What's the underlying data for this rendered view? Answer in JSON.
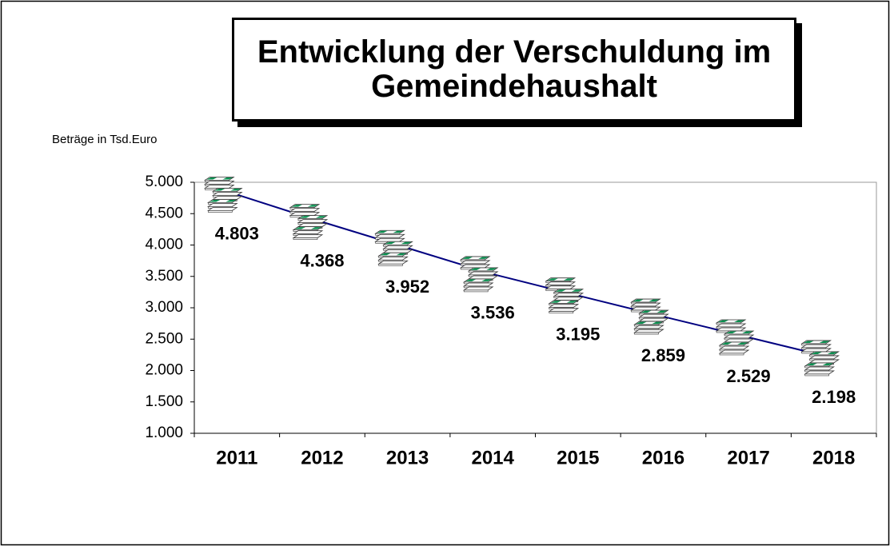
{
  "chart_data": {
    "type": "line",
    "title": "Entwicklung der Verschuldung im Gemeindehaushalt",
    "y_axis_label": "Beträge in Tsd.Euro",
    "categories": [
      "2011",
      "2012",
      "2013",
      "2014",
      "2015",
      "2016",
      "2017",
      "2018"
    ],
    "values": [
      4803,
      4368,
      3952,
      3536,
      3195,
      2859,
      2529,
      2198
    ],
    "value_labels": [
      "4.803",
      "4.368",
      "3.952",
      "3.536",
      "3.195",
      "2.859",
      "2.529",
      "2.198"
    ],
    "color": "#000080",
    "ylim": [
      1000,
      5000
    ],
    "yticks": [
      {
        "value": 1000,
        "label": "1.000"
      },
      {
        "value": 1500,
        "label": "1.500"
      },
      {
        "value": 2000,
        "label": "2.000"
      },
      {
        "value": 2500,
        "label": "2.500"
      },
      {
        "value": 3000,
        "label": "3.000"
      },
      {
        "value": 3500,
        "label": "3.500"
      },
      {
        "value": 4000,
        "label": "4.000"
      },
      {
        "value": 4500,
        "label": "4.500"
      },
      {
        "value": 5000,
        "label": "5.000"
      }
    ],
    "grid": false
  }
}
